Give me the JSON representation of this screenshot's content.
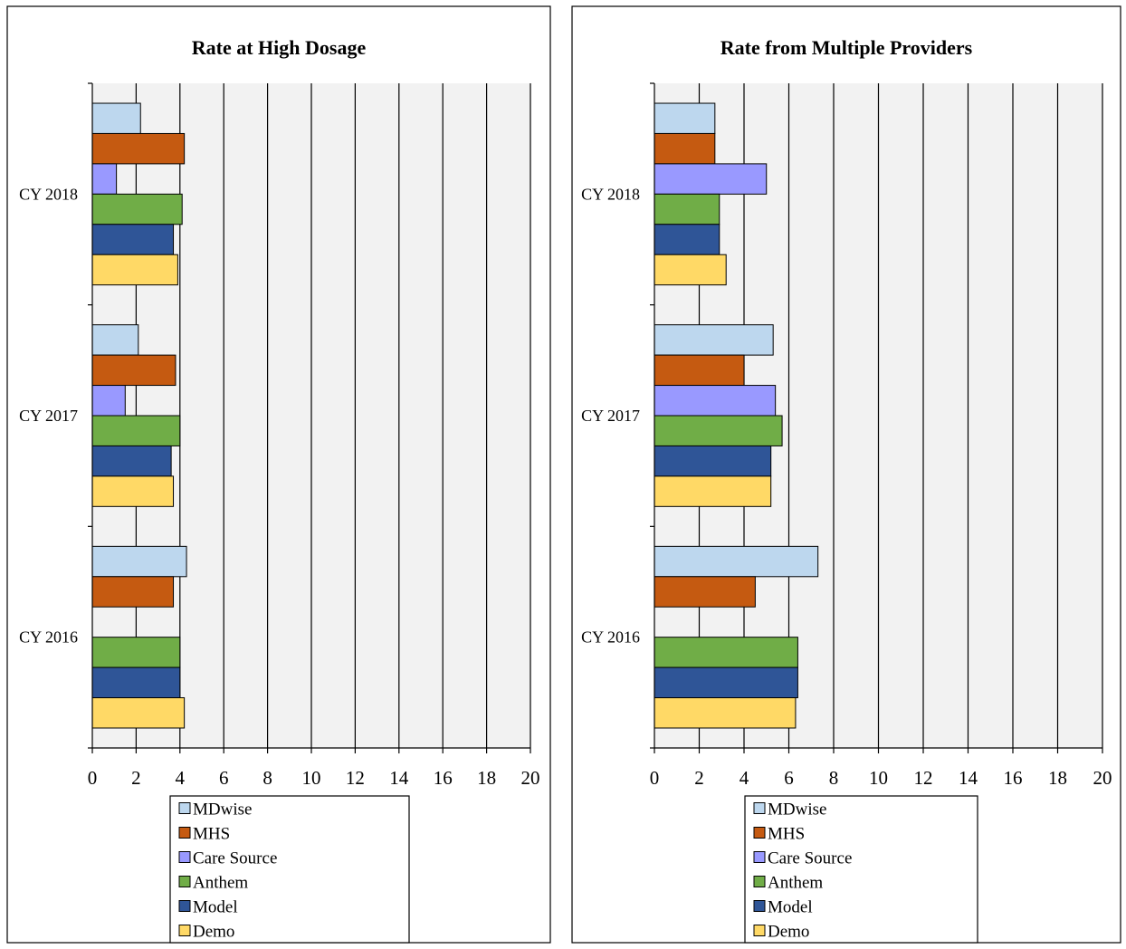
{
  "chart_data": [
    {
      "type": "bar",
      "orientation": "horizontal",
      "title": "Rate at High Dosage",
      "categories": [
        "CY 2018",
        "CY 2017",
        "CY 2016"
      ],
      "xlim": [
        0,
        20
      ],
      "x_ticks": [
        "0",
        "2",
        "4",
        "6",
        "8",
        "10",
        "12",
        "14",
        "16",
        "18",
        "20"
      ],
      "grid": true,
      "legend_position": "bottom",
      "series": [
        {
          "name": "MDwise",
          "color": "#bdd7ee",
          "values": [
            2.2,
            2.1,
            4.3
          ]
        },
        {
          "name": "MHS",
          "color": "#c55a11",
          "values": [
            4.2,
            3.8,
            3.7
          ]
        },
        {
          "name": "Care Source",
          "color": "#9999ff",
          "values": [
            1.1,
            1.5,
            null
          ]
        },
        {
          "name": "Anthem",
          "color": "#70ad47",
          "values": [
            4.1,
            4.0,
            4.0
          ]
        },
        {
          "name": "Model",
          "color": "#2f5597",
          "values": [
            3.7,
            3.6,
            4.0
          ]
        },
        {
          "name": "Demo",
          "color": "#ffd966",
          "values": [
            3.9,
            3.7,
            4.2
          ]
        }
      ]
    },
    {
      "type": "bar",
      "orientation": "horizontal",
      "title": "Rate from Multiple Providers",
      "categories": [
        "CY 2018",
        "CY 2017",
        "CY 2016"
      ],
      "xlim": [
        0,
        20
      ],
      "x_ticks": [
        "0",
        "2",
        "4",
        "6",
        "8",
        "10",
        "12",
        "14",
        "16",
        "18",
        "20"
      ],
      "grid": true,
      "legend_position": "bottom",
      "series": [
        {
          "name": "MDwise",
          "color": "#bdd7ee",
          "values": [
            2.7,
            5.3,
            7.3
          ]
        },
        {
          "name": "MHS",
          "color": "#c55a11",
          "values": [
            2.7,
            4.0,
            4.5
          ]
        },
        {
          "name": "Care Source",
          "color": "#9999ff",
          "values": [
            5.0,
            5.4,
            null
          ]
        },
        {
          "name": "Anthem",
          "color": "#70ad47",
          "values": [
            2.9,
            5.7,
            6.4
          ]
        },
        {
          "name": "Model",
          "color": "#2f5597",
          "values": [
            2.9,
            5.2,
            6.4
          ]
        },
        {
          "name": "Demo",
          "color": "#ffd966",
          "values": [
            3.2,
            5.2,
            6.3
          ]
        }
      ]
    }
  ]
}
